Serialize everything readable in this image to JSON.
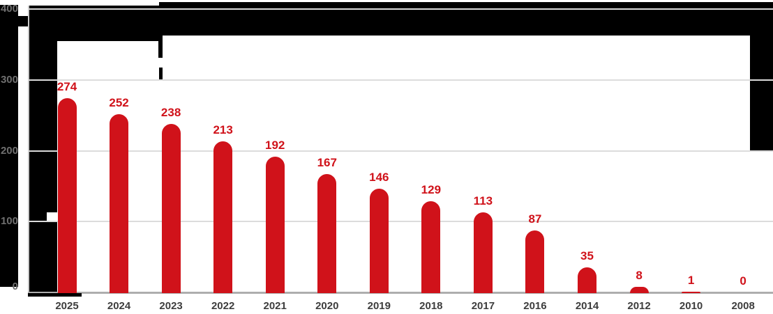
{
  "chart_data": {
    "type": "bar",
    "title": "",
    "categories": [
      "2025",
      "2024",
      "2023",
      "2022",
      "2021",
      "2020",
      "2019",
      "2018",
      "2017",
      "2016",
      "2014",
      "2012",
      "2010",
      "2008"
    ],
    "values": [
      274,
      252,
      238,
      213,
      192,
      167,
      146,
      129,
      113,
      87,
      35,
      8,
      1,
      0
    ],
    "value_labels": [
      "274",
      "252",
      "238",
      "213",
      "192",
      "167",
      "146",
      "129",
      "113",
      "87",
      "35",
      "8",
      "1",
      "0"
    ],
    "y_ticks": [
      400,
      300,
      200,
      100,
      0
    ],
    "y_tick_labels": [
      "400",
      "300",
      "200",
      "100",
      "0"
    ],
    "ylim": [
      0,
      400
    ],
    "xlabel": "",
    "ylabel": "",
    "grid": true,
    "legend_position": "none",
    "bar_color": "#d0121a",
    "value_label_color": "#d0121a",
    "x_tick_color": "#3d3d3d",
    "y_tick_color": "#6f6f6f",
    "gridline_color": "#dcdcdc",
    "axis_line_color": "#aeaeae",
    "plot_background": "#ffffff",
    "redaction_color": "#000000"
  }
}
